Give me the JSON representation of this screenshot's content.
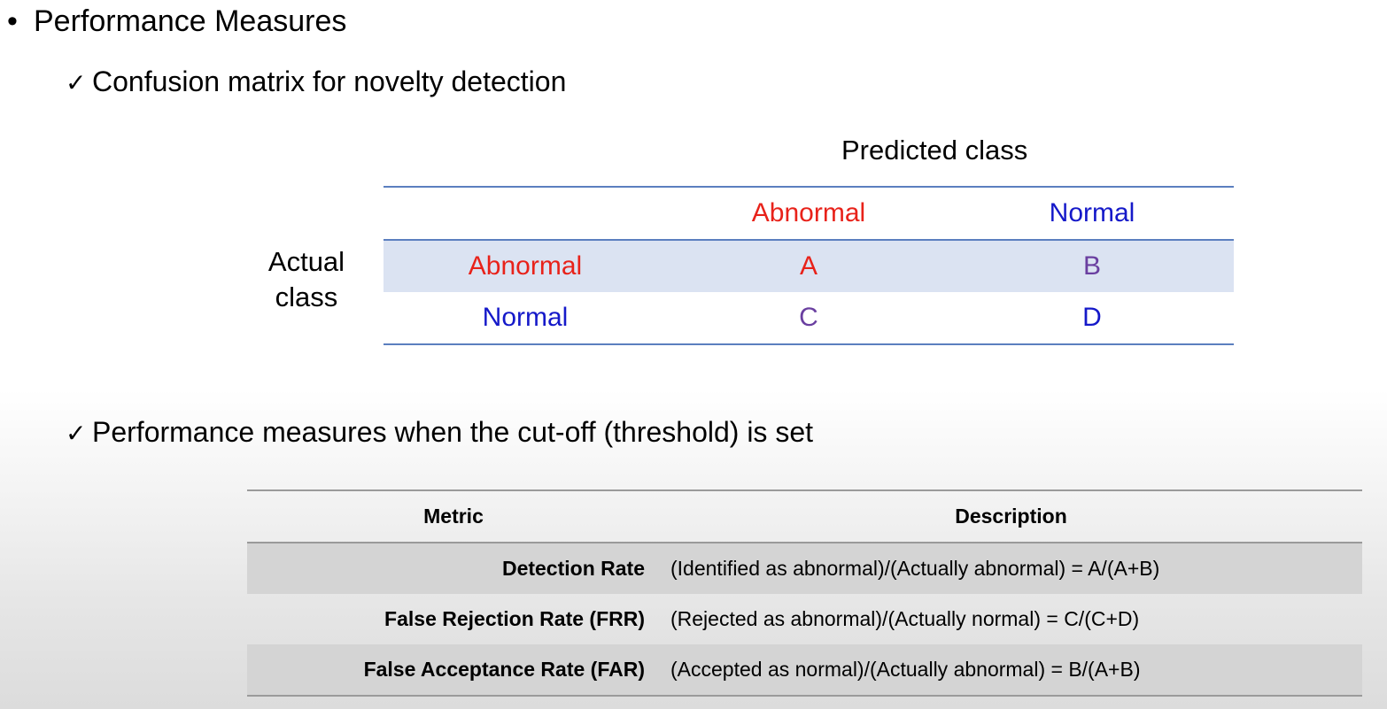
{
  "title": "Performance Measures",
  "bullet_glyph": "•",
  "check_glyph": "✓",
  "sub1": "Confusion matrix for novelty detection",
  "sub2": "Performance measures when the cut-off (threshold) is set",
  "confusion_matrix": {
    "predicted_header": "Predicted class",
    "actual_label_line1": "Actual",
    "actual_label_line2": "class",
    "col_headers": [
      "Abnormal",
      "Normal"
    ],
    "rows": [
      {
        "label": "Abnormal",
        "cells": [
          "A",
          "B"
        ]
      },
      {
        "label": "Normal",
        "cells": [
          "C",
          "D"
        ]
      }
    ],
    "colors": {
      "abnormal": "#e8221a",
      "normal": "#1519c9",
      "off_diagonal": "#6a3fa0",
      "highlight_row": "#dbe3f2",
      "rule": "#5b7fbf"
    }
  },
  "metrics_table": {
    "headers": [
      "Metric",
      "Description"
    ],
    "rows": [
      {
        "metric": "Detection Rate",
        "description": "(Identified as abnormal)/(Actually abnormal) = A/(A+B)"
      },
      {
        "metric": "False Rejection Rate (FRR)",
        "description": "(Rejected as abnormal)/(Actually normal) = C/(C+D)"
      },
      {
        "metric": "False Acceptance Rate (FAR)",
        "description": "(Accepted as normal)/(Actually abnormal) = B/(A+B)"
      }
    ]
  }
}
